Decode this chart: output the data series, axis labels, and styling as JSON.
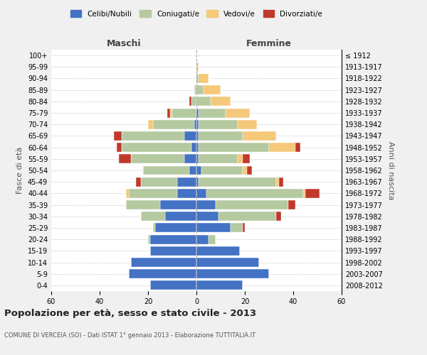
{
  "age_groups": [
    "0-4",
    "5-9",
    "10-14",
    "15-19",
    "20-24",
    "25-29",
    "30-34",
    "35-39",
    "40-44",
    "45-49",
    "50-54",
    "55-59",
    "60-64",
    "65-69",
    "70-74",
    "75-79",
    "80-84",
    "85-89",
    "90-94",
    "95-99",
    "100+"
  ],
  "birth_years": [
    "2008-2012",
    "2003-2007",
    "1998-2002",
    "1993-1997",
    "1988-1992",
    "1983-1987",
    "1978-1982",
    "1973-1977",
    "1968-1972",
    "1963-1967",
    "1958-1962",
    "1953-1957",
    "1948-1952",
    "1943-1947",
    "1938-1942",
    "1933-1937",
    "1928-1932",
    "1923-1927",
    "1918-1922",
    "1913-1917",
    "≤ 1912"
  ],
  "colors": {
    "celibi": "#4472c4",
    "coniugati": "#b5c9a0",
    "vedovi": "#f5c87a",
    "divorziati": "#c0392b"
  },
  "males": {
    "celibi": [
      19,
      28,
      27,
      19,
      19,
      17,
      13,
      15,
      8,
      8,
      3,
      5,
      2,
      5,
      1,
      0,
      0,
      0,
      0,
      0,
      0
    ],
    "coniugati": [
      0,
      0,
      0,
      0,
      1,
      1,
      10,
      14,
      20,
      15,
      19,
      22,
      29,
      26,
      17,
      10,
      2,
      1,
      0,
      0,
      0
    ],
    "vedovi": [
      0,
      0,
      0,
      0,
      0,
      0,
      0,
      0,
      1,
      0,
      0,
      0,
      0,
      0,
      2,
      1,
      0,
      0,
      0,
      0,
      0
    ],
    "divorziati": [
      0,
      0,
      0,
      0,
      0,
      0,
      0,
      0,
      0,
      2,
      0,
      5,
      2,
      3,
      0,
      1,
      1,
      0,
      0,
      0,
      0
    ]
  },
  "females": {
    "celibi": [
      19,
      30,
      26,
      18,
      5,
      14,
      9,
      8,
      4,
      1,
      2,
      1,
      1,
      1,
      1,
      1,
      0,
      0,
      0,
      0,
      0
    ],
    "coniugati": [
      0,
      0,
      0,
      0,
      3,
      5,
      24,
      30,
      40,
      32,
      17,
      16,
      29,
      18,
      16,
      11,
      6,
      3,
      1,
      0,
      0
    ],
    "vedovi": [
      0,
      0,
      0,
      0,
      0,
      0,
      0,
      0,
      1,
      1,
      2,
      2,
      11,
      14,
      8,
      10,
      8,
      7,
      4,
      1,
      0
    ],
    "divorziati": [
      0,
      0,
      0,
      0,
      0,
      1,
      2,
      3,
      6,
      2,
      2,
      3,
      2,
      0,
      0,
      0,
      0,
      0,
      0,
      0,
      0
    ]
  },
  "xlim": 60,
  "title": "Popolazione per età, sesso e stato civile - 2013",
  "subtitle": "COMUNE DI VERCEIA (SO) - Dati ISTAT 1° gennaio 2013 - Elaborazione TUTTITALIA.IT",
  "ylabel_left": "Fasce di età",
  "ylabel_right": "Anni di nascita",
  "xlabel_left": "Maschi",
  "xlabel_right": "Femmine",
  "legend_labels": [
    "Celibi/Nubili",
    "Coniugati/e",
    "Vedovi/e",
    "Divorziati/e"
  ],
  "bg_color": "#f0f0f0",
  "plot_bg": "#ffffff"
}
